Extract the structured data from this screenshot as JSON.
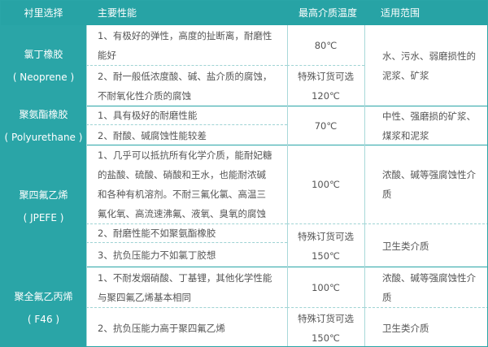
{
  "table": {
    "header": [
      "衬里选择",
      "主要性能",
      "最高介质温度",
      "适用范围"
    ],
    "groups": [
      {
        "name": [
          "氯丁橡胶",
          "( Neoprene )"
        ],
        "features": [
          [
            "1、有极好的弹性，高度的扯断离，耐磨性",
            "能好"
          ],
          [
            "2、耐一般低浓度酸、碱、盐介质的腐蚀，",
            "不耐氧化性介质的腐蚀"
          ]
        ],
        "temperatures": [
          [
            "80℃"
          ],
          [
            "特殊订货可选",
            "120℃"
          ]
        ],
        "applications": [
          [
            "水、污水、弱磨损性的",
            "泥浆、矿浆"
          ]
        ]
      },
      {
        "name": [
          "聚氨酯橡胶",
          "( Polyurethane )"
        ],
        "features": [
          [
            "1、具有极好的耐磨性能"
          ],
          [
            "2、耐酸、碱腐蚀性能较差"
          ]
        ],
        "temperatures": [
          [
            "70℃"
          ]
        ],
        "applications": [
          [
            "中性、强磨损的矿浆、",
            "煤浆和泥浆"
          ]
        ]
      },
      {
        "name": [
          "聚四氟乙烯",
          "( JPEFE )"
        ],
        "features": [
          [
            "1、几乎可以抵抗所有化学介质，能耐妃糖",
            "的盐酸、硫酸、硝酸和王水，也能耐浓碱",
            "和各种有机溶剂。不耐三氟化氯、高温三",
            "氟化氧、高流速沸氟、液氧、臭氧的腐蚀"
          ],
          [
            "2、耐磨性能不如聚氨酯橡胶"
          ],
          [
            "3、抗负压能力不如氯丁胶想"
          ]
        ],
        "temperatures": [
          [
            "100℃"
          ],
          [
            "特殊订货可选",
            "150℃"
          ]
        ],
        "applications": [
          [
            "浓酸、碱等强腐蚀性介",
            "质"
          ],
          [
            "卫生类介质"
          ]
        ]
      },
      {
        "name": [
          "聚全氟乙丙烯",
          "( F46 )"
        ],
        "features": [
          [
            "1、不耐发烟硝酸、丁基锂，其他化学性能",
            "与聚四氟乙烯基本相同"
          ],
          [
            "2、抗负压能力高于聚四氟乙烯"
          ]
        ],
        "temperatures": [
          [
            "100℃"
          ],
          [
            "特殊订货可选",
            "150℃"
          ]
        ],
        "applications": [
          [
            "浓酸、碱等强腐蚀性介",
            "质"
          ],
          [
            "卫生类介质"
          ]
        ]
      }
    ]
  }
}
